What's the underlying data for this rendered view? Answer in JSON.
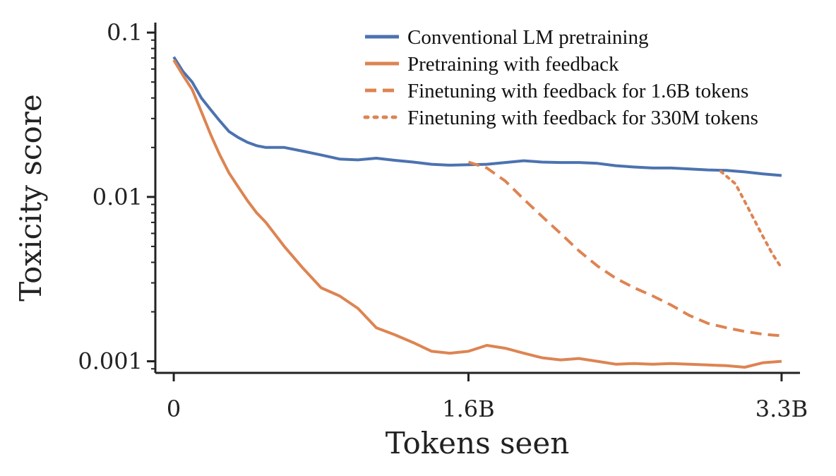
{
  "chart_data": {
    "type": "line",
    "xlabel": "Tokens seen",
    "ylabel": "Toxicity score",
    "xlim": [
      -0.1,
      3.4
    ],
    "ylim": [
      0.00085,
      0.115
    ],
    "yscale": "log",
    "xticks": [
      {
        "value": 0,
        "label": "0"
      },
      {
        "value": 1.6,
        "label": "1.6B"
      },
      {
        "value": 3.3,
        "label": "3.3B"
      }
    ],
    "yticks": [
      {
        "value": 0.1,
        "label": "0.1"
      },
      {
        "value": 0.01,
        "label": "0.01"
      },
      {
        "value": 0.001,
        "label": "0.001"
      }
    ],
    "grid": false,
    "legend_position": "top-right",
    "series": [
      {
        "name": "Conventional LM pretraining",
        "color": "#4C72B0",
        "style": "solid",
        "x": [
          0,
          0.05,
          0.1,
          0.15,
          0.2,
          0.25,
          0.3,
          0.35,
          0.4,
          0.45,
          0.5,
          0.6,
          0.7,
          0.8,
          0.9,
          1.0,
          1.1,
          1.2,
          1.3,
          1.4,
          1.5,
          1.6,
          1.7,
          1.8,
          1.9,
          2.0,
          2.1,
          2.2,
          2.3,
          2.4,
          2.5,
          2.6,
          2.7,
          2.8,
          2.9,
          3.0,
          3.1,
          3.2,
          3.3
        ],
        "y": [
          0.071,
          0.058,
          0.05,
          0.04,
          0.034,
          0.029,
          0.025,
          0.023,
          0.0215,
          0.0205,
          0.02,
          0.02,
          0.019,
          0.018,
          0.017,
          0.0168,
          0.0172,
          0.0167,
          0.0163,
          0.0158,
          0.0156,
          0.0157,
          0.0158,
          0.0162,
          0.0166,
          0.0163,
          0.0162,
          0.0162,
          0.016,
          0.0155,
          0.0152,
          0.015,
          0.015,
          0.0148,
          0.0146,
          0.0145,
          0.0142,
          0.0138,
          0.0135
        ]
      },
      {
        "name": "Pretraining with feedback",
        "color": "#DD8452",
        "style": "solid",
        "x": [
          0,
          0.05,
          0.1,
          0.15,
          0.2,
          0.25,
          0.3,
          0.35,
          0.4,
          0.45,
          0.5,
          0.6,
          0.7,
          0.8,
          0.9,
          1.0,
          1.1,
          1.2,
          1.3,
          1.4,
          1.5,
          1.6,
          1.7,
          1.8,
          1.9,
          2.0,
          2.1,
          2.2,
          2.3,
          2.4,
          2.5,
          2.6,
          2.7,
          2.8,
          2.9,
          3.0,
          3.1,
          3.2,
          3.3
        ],
        "y": [
          0.068,
          0.055,
          0.045,
          0.033,
          0.024,
          0.018,
          0.014,
          0.0115,
          0.0095,
          0.008,
          0.007,
          0.005,
          0.0037,
          0.0028,
          0.0025,
          0.0021,
          0.0016,
          0.00145,
          0.0013,
          0.00115,
          0.00112,
          0.00115,
          0.00125,
          0.0012,
          0.00112,
          0.00105,
          0.00102,
          0.00104,
          0.001,
          0.00096,
          0.00097,
          0.00096,
          0.00097,
          0.00096,
          0.00095,
          0.00094,
          0.00092,
          0.00098,
          0.001
        ]
      },
      {
        "name": "Finetuning with feedback for 1.6B tokens",
        "color": "#DD8452",
        "style": "dashed",
        "x": [
          1.6,
          1.7,
          1.8,
          1.9,
          2.0,
          2.1,
          2.2,
          2.3,
          2.4,
          2.5,
          2.6,
          2.7,
          2.8,
          2.9,
          3.0,
          3.1,
          3.2,
          3.3
        ],
        "y": [
          0.0163,
          0.015,
          0.0125,
          0.0097,
          0.0076,
          0.006,
          0.0047,
          0.0038,
          0.0032,
          0.0028,
          0.0025,
          0.0022,
          0.0019,
          0.0017,
          0.0016,
          0.00152,
          0.00146,
          0.00143
        ]
      },
      {
        "name": "Finetuning with feedback for 330M tokens",
        "color": "#DD8452",
        "style": "dotted",
        "x": [
          2.97,
          3.05,
          3.12,
          3.19,
          3.25,
          3.3
        ],
        "y": [
          0.0143,
          0.012,
          0.0085,
          0.006,
          0.0045,
          0.0037
        ]
      }
    ]
  }
}
